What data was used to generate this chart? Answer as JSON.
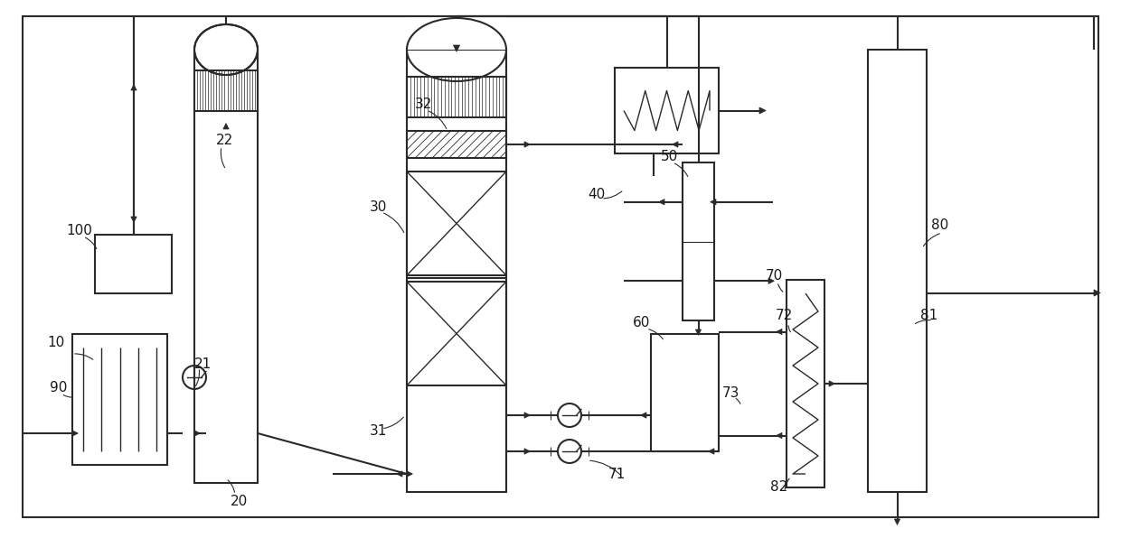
{
  "bg": "#ffffff",
  "lc": "#2a2a2a",
  "lw": 1.5,
  "lwt": 1.0,
  "lws": 0.7,
  "label_fs": 11,
  "figw": 12.4,
  "figh": 5.96
}
